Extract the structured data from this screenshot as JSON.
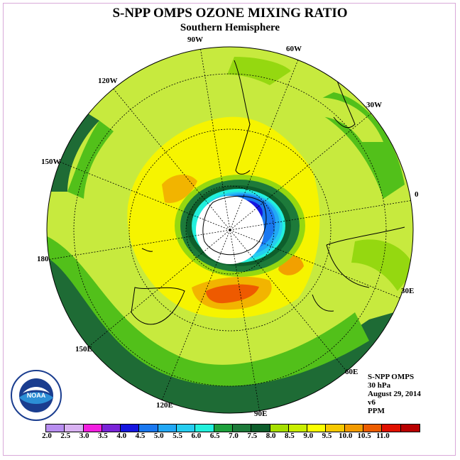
{
  "title": "S-NPP OMPS OZONE MIXING RATIO",
  "subtitle": "Southern Hemisphere",
  "longitude_labels": [
    "90W",
    "60W",
    "30W",
    "0",
    "30E",
    "60E",
    "90E",
    "120E",
    "150E",
    "180",
    "150W",
    "120W"
  ],
  "info": {
    "instrument": "S-NPP OMPS",
    "level": "30 hPa",
    "date": "August 29, 2014",
    "version": "v6",
    "units": "PPM"
  },
  "logo_text": "NOAA",
  "colorbar": {
    "levels": [
      "2.0",
      "2.5",
      "3.0",
      "3.5",
      "4.0",
      "4.5",
      "5.0",
      "5.5",
      "6.0",
      "6.5",
      "7.0",
      "7.5",
      "8.0",
      "8.5",
      "9.0",
      "9.5",
      "10.0",
      "10.5",
      "11.0"
    ],
    "colors": [
      "#b88ef0",
      "#d9b2f2",
      "#f21fe0",
      "#7a24d8",
      "#1616e0",
      "#1a78f0",
      "#22a8f5",
      "#26cdf0",
      "#22f0dc",
      "#1ea03c",
      "#1d7a3a",
      "#0e5e2c",
      "#a6df00",
      "#c9ee00",
      "#fbff00",
      "#f6c800",
      "#f29a00",
      "#ec5c00",
      "#e01000",
      "#b80000",
      "#7a4a2a"
    ]
  }
}
